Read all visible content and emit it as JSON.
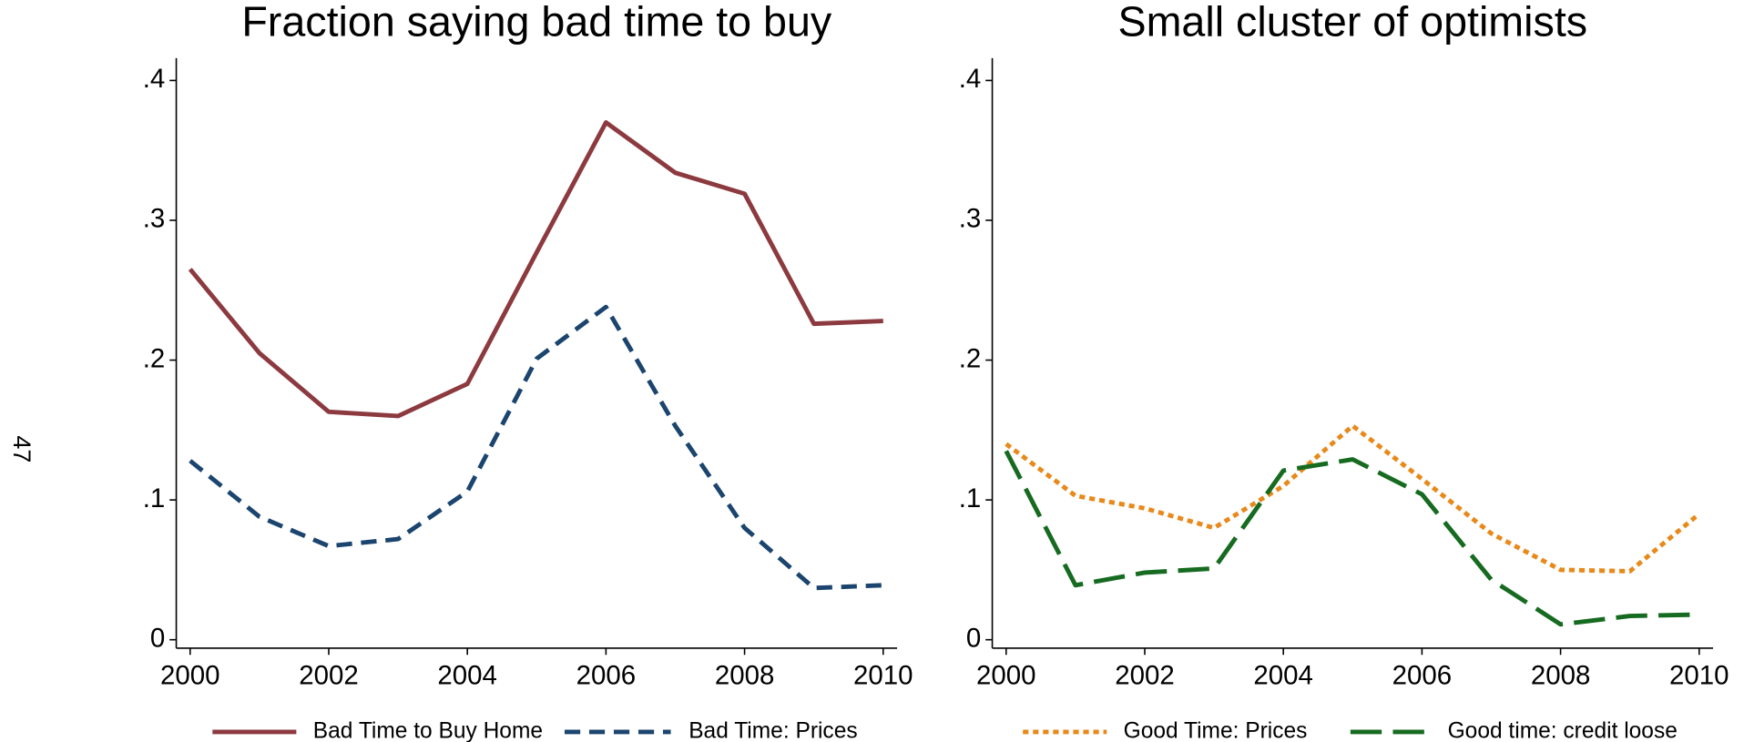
{
  "page_number": "47",
  "chart_data": [
    {
      "type": "line",
      "title": "Fraction saying bad time to buy",
      "x": [
        2000,
        2001,
        2002,
        2003,
        2004,
        2005,
        2006,
        2007,
        2008,
        2009,
        2010
      ],
      "series": [
        {
          "name": "Bad Time to Buy Home",
          "color": "#8c3a3f",
          "dash": "solid",
          "values": [
            0.265,
            0.205,
            0.163,
            0.16,
            0.183,
            0.277,
            0.37,
            0.334,
            0.319,
            0.226,
            0.228
          ]
        },
        {
          "name": "Bad Time: Prices",
          "color": "#1b456e",
          "dash": "dashed",
          "values": [
            0.128,
            0.088,
            0.067,
            0.072,
            0.106,
            0.201,
            0.238,
            0.153,
            0.08,
            0.037,
            0.039
          ]
        }
      ],
      "xlim": [
        1999.8,
        2010.2
      ],
      "ylim": [
        -0.006,
        0.416
      ],
      "xticks": [
        2000,
        2002,
        2004,
        2006,
        2008,
        2010
      ],
      "yticks": [
        0,
        {
          "value": 0.1,
          "label": ".1"
        },
        {
          "value": 0.2,
          "label": ".2"
        },
        {
          "value": 0.3,
          "label": ".3"
        },
        {
          "value": 0.4,
          "label": ".4"
        }
      ],
      "legend": "bottom"
    },
    {
      "type": "line",
      "title": "Small cluster of optimists",
      "x": [
        2000,
        2001,
        2002,
        2003,
        2004,
        2005,
        2006,
        2007,
        2008,
        2009,
        2010
      ],
      "series": [
        {
          "name": "Good Time: Prices",
          "color": "#e8891b",
          "dash": "dotted",
          "values": [
            0.14,
            0.103,
            0.094,
            0.08,
            0.11,
            0.153,
            0.115,
            0.076,
            0.05,
            0.049,
            0.09
          ]
        },
        {
          "name": "Good time: credit loose",
          "color": "#166b20",
          "dash": "longdash",
          "values": [
            0.135,
            0.039,
            0.048,
            0.051,
            0.121,
            0.129,
            0.104,
            0.043,
            0.011,
            0.017,
            0.018
          ]
        }
      ],
      "xlim": [
        1999.8,
        2010.2
      ],
      "ylim": [
        -0.006,
        0.416
      ],
      "xticks": [
        2000,
        2002,
        2004,
        2006,
        2008,
        2010
      ],
      "yticks": [
        0,
        {
          "value": 0.1,
          "label": ".1"
        },
        {
          "value": 0.2,
          "label": ".2"
        },
        {
          "value": 0.3,
          "label": ".3"
        },
        {
          "value": 0.4,
          "label": ".4"
        }
      ],
      "legend": "bottom"
    }
  ]
}
